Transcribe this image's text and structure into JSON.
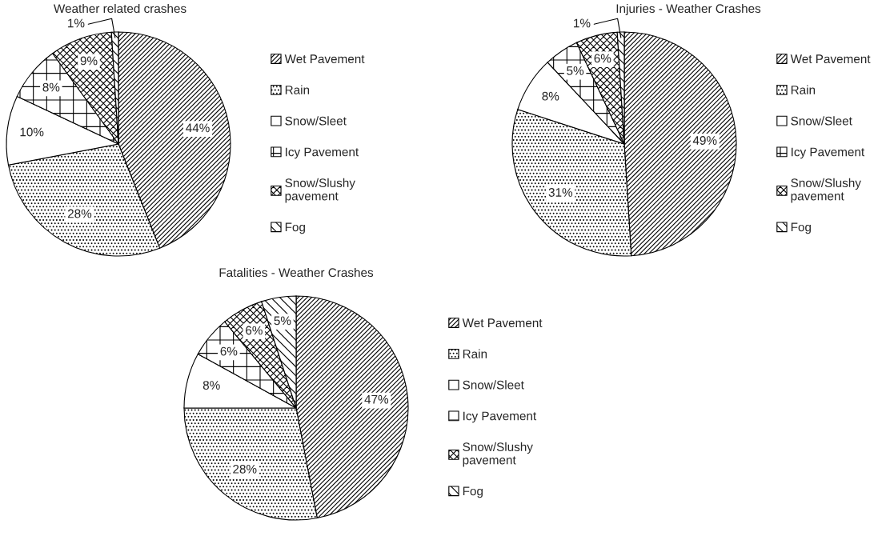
{
  "chart_data": [
    {
      "type": "pie",
      "title": "Weather related crashes",
      "categories": [
        "Wet Pavement",
        "Rain",
        "Snow/Sleet",
        "Icy Pavement",
        "Snow/Slushy\npavement",
        "Fog"
      ],
      "values": [
        44,
        28,
        10,
        8,
        9,
        1
      ],
      "value_labels": [
        "44%",
        "28%",
        "10%",
        "8%",
        "9%",
        "1%"
      ],
      "legend": "right"
    },
    {
      "type": "pie",
      "title": "Injuries - Weather Crashes",
      "categories": [
        "Wet Pavement",
        "Rain",
        "Snow/Sleet",
        "Icy Pavement",
        "Snow/Slushy\npavement",
        "Fog"
      ],
      "values": [
        49,
        31,
        8,
        5,
        6,
        1
      ],
      "value_labels": [
        "49%",
        "31%",
        "8%",
        "5%",
        "6%",
        "1%"
      ],
      "legend": "right"
    },
    {
      "type": "pie",
      "title": "Fatalities - Weather Crashes",
      "categories": [
        "Wet Pavement",
        "Rain",
        "Snow/Sleet",
        "Icy Pavement",
        "Snow/Slushy\npavement",
        "Fog"
      ],
      "values": [
        47,
        28,
        8,
        6,
        6,
        5
      ],
      "value_labels": [
        "47%",
        "28%",
        "8%",
        "6%",
        "6%",
        "5%"
      ],
      "legend": "right"
    }
  ]
}
